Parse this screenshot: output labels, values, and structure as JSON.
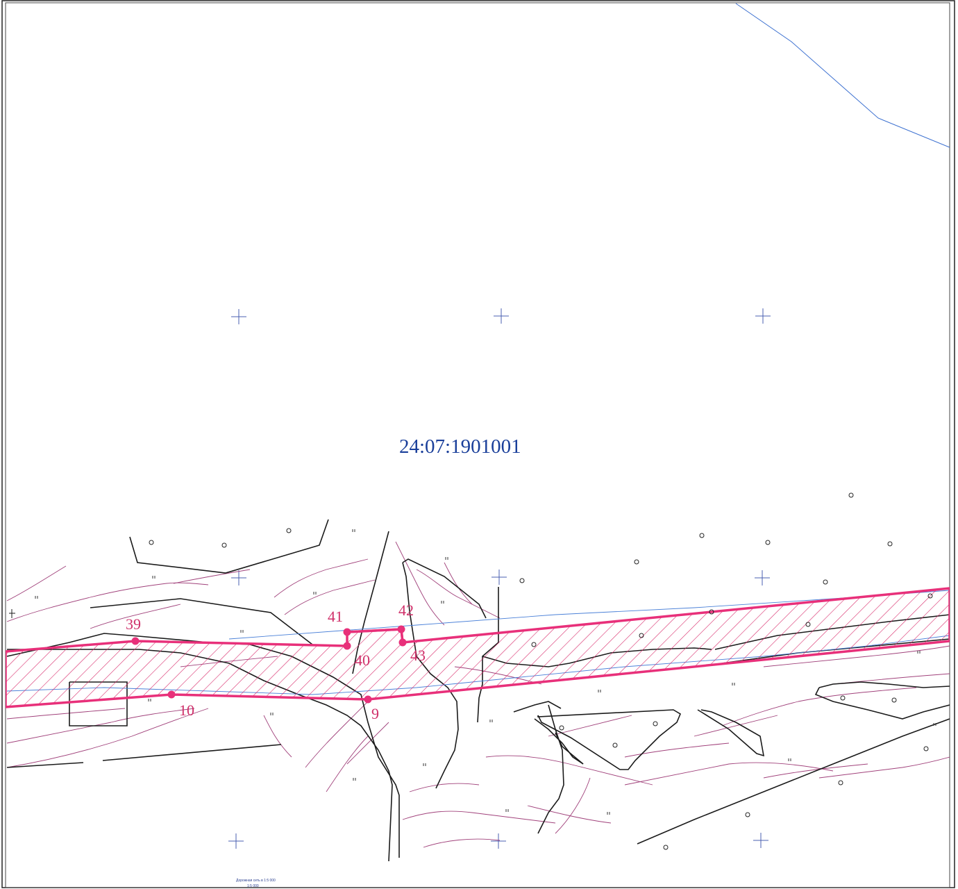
{
  "map": {
    "cadastral_number": "24:07:1901001",
    "points": [
      {
        "label": "39"
      },
      {
        "label": "10"
      },
      {
        "label": "41"
      },
      {
        "label": "40"
      },
      {
        "label": "9"
      },
      {
        "label": "42"
      },
      {
        "label": "43"
      }
    ],
    "footer_note": {
      "line1": "Дорожная сеть в 1:5 000",
      "line2": "1:5 000"
    },
    "colors": {
      "parcel_outline": "#e8307a",
      "hatch": "#d82a6a",
      "contours": "#a0407a",
      "roads": "#1a1a1a",
      "grid_cross": "#4a5fb0",
      "river": "#3a6fd0",
      "label_blue": "#1a3f9a"
    }
  }
}
